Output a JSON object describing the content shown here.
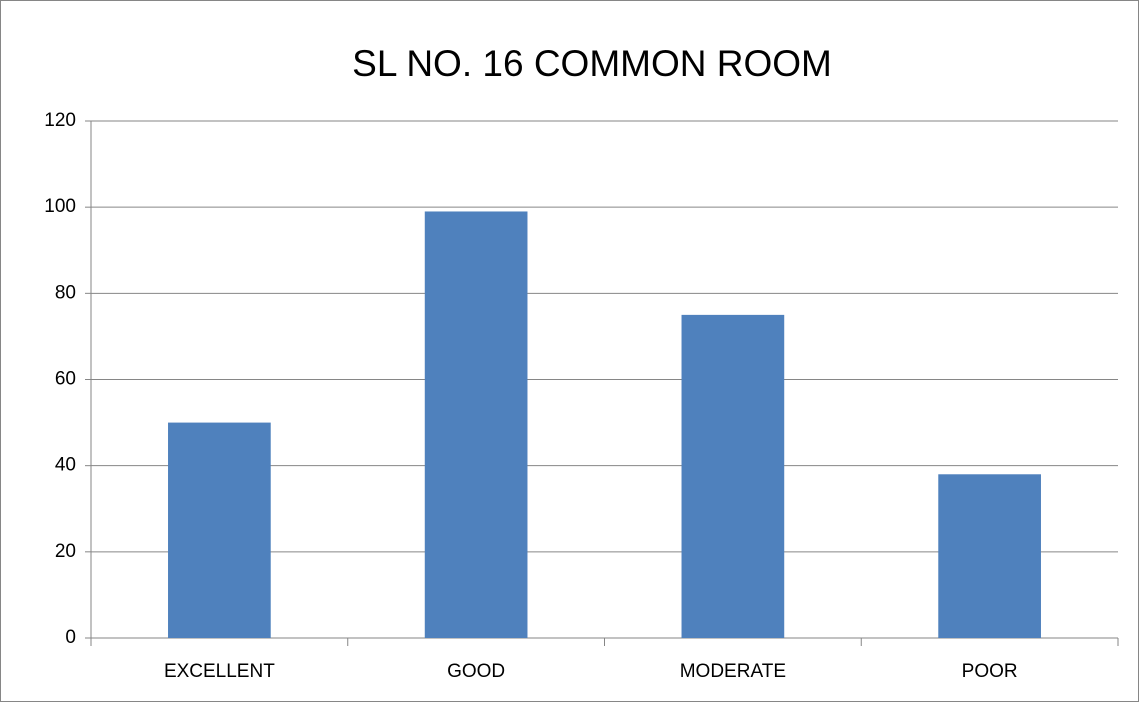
{
  "chart_data": {
    "type": "bar",
    "title": "SL NO. 16 COMMON ROOM",
    "categories": [
      "EXCELLENT",
      "GOOD",
      "MODERATE",
      "POOR"
    ],
    "values": [
      50,
      99,
      75,
      38
    ],
    "color": "#4f81bd",
    "ylim": [
      0,
      120
    ],
    "yticks": [
      0,
      20,
      40,
      60,
      80,
      100,
      120
    ],
    "grid": true
  }
}
